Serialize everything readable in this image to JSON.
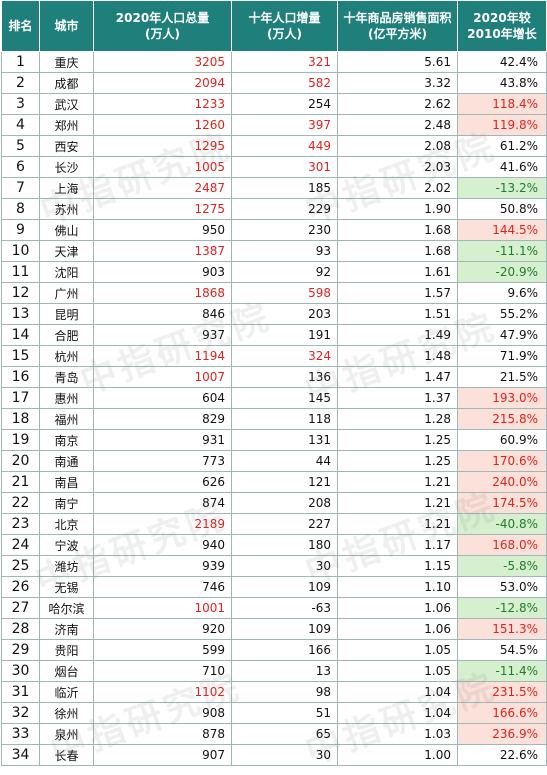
{
  "header": {
    "rank": "排名",
    "city": "城市",
    "pop_line1": "2020年人口总量",
    "pop_line2": "(万人)",
    "inc_line1": "十年人口增量",
    "inc_line2": "(万人)",
    "area_line1": "十年商品房销售面积",
    "area_line2": "(亿平方米)",
    "chg_line1": "2020年较",
    "chg_line2": "2010年增长"
  },
  "watermark": "中指研究院",
  "rows": [
    {
      "rank": "1",
      "city": "重庆",
      "pop": "3205",
      "pop_hl": true,
      "inc": "321",
      "inc_hl": true,
      "area": "5.61",
      "chg": "42.4%",
      "chg_hl": ""
    },
    {
      "rank": "2",
      "city": "成都",
      "pop": "2094",
      "pop_hl": true,
      "inc": "582",
      "inc_hl": true,
      "area": "3.32",
      "chg": "43.8%",
      "chg_hl": ""
    },
    {
      "rank": "3",
      "city": "武汉",
      "pop": "1233",
      "pop_hl": true,
      "inc": "254",
      "inc_hl": false,
      "area": "2.62",
      "chg": "118.4%",
      "chg_hl": "pos"
    },
    {
      "rank": "4",
      "city": "郑州",
      "pop": "1260",
      "pop_hl": true,
      "inc": "397",
      "inc_hl": true,
      "area": "2.48",
      "chg": "119.8%",
      "chg_hl": "pos"
    },
    {
      "rank": "5",
      "city": "西安",
      "pop": "1295",
      "pop_hl": true,
      "inc": "449",
      "inc_hl": true,
      "area": "2.08",
      "chg": "61.2%",
      "chg_hl": ""
    },
    {
      "rank": "6",
      "city": "长沙",
      "pop": "1005",
      "pop_hl": true,
      "inc": "301",
      "inc_hl": true,
      "area": "2.03",
      "chg": "41.6%",
      "chg_hl": ""
    },
    {
      "rank": "7",
      "city": "上海",
      "pop": "2487",
      "pop_hl": true,
      "inc": "185",
      "inc_hl": false,
      "area": "2.02",
      "chg": "-13.2%",
      "chg_hl": "neg"
    },
    {
      "rank": "8",
      "city": "苏州",
      "pop": "1275",
      "pop_hl": true,
      "inc": "229",
      "inc_hl": false,
      "area": "1.90",
      "chg": "50.8%",
      "chg_hl": ""
    },
    {
      "rank": "9",
      "city": "佛山",
      "pop": "950",
      "pop_hl": false,
      "inc": "230",
      "inc_hl": false,
      "area": "1.68",
      "chg": "144.5%",
      "chg_hl": "pos"
    },
    {
      "rank": "10",
      "city": "天津",
      "pop": "1387",
      "pop_hl": true,
      "inc": "93",
      "inc_hl": false,
      "area": "1.68",
      "chg": "-11.1%",
      "chg_hl": "neg"
    },
    {
      "rank": "11",
      "city": "沈阳",
      "pop": "903",
      "pop_hl": false,
      "inc": "92",
      "inc_hl": false,
      "area": "1.61",
      "chg": "-20.9%",
      "chg_hl": "neg"
    },
    {
      "rank": "12",
      "city": "广州",
      "pop": "1868",
      "pop_hl": true,
      "inc": "598",
      "inc_hl": true,
      "area": "1.57",
      "chg": "9.6%",
      "chg_hl": ""
    },
    {
      "rank": "13",
      "city": "昆明",
      "pop": "846",
      "pop_hl": false,
      "inc": "203",
      "inc_hl": false,
      "area": "1.51",
      "chg": "55.2%",
      "chg_hl": ""
    },
    {
      "rank": "14",
      "city": "合肥",
      "pop": "937",
      "pop_hl": false,
      "inc": "191",
      "inc_hl": false,
      "area": "1.49",
      "chg": "47.9%",
      "chg_hl": ""
    },
    {
      "rank": "15",
      "city": "杭州",
      "pop": "1194",
      "pop_hl": true,
      "inc": "324",
      "inc_hl": true,
      "area": "1.48",
      "chg": "71.9%",
      "chg_hl": ""
    },
    {
      "rank": "16",
      "city": "青岛",
      "pop": "1007",
      "pop_hl": true,
      "inc": "136",
      "inc_hl": false,
      "area": "1.47",
      "chg": "21.5%",
      "chg_hl": ""
    },
    {
      "rank": "17",
      "city": "惠州",
      "pop": "604",
      "pop_hl": false,
      "inc": "145",
      "inc_hl": false,
      "area": "1.37",
      "chg": "193.0%",
      "chg_hl": "pos"
    },
    {
      "rank": "18",
      "city": "福州",
      "pop": "829",
      "pop_hl": false,
      "inc": "118",
      "inc_hl": false,
      "area": "1.28",
      "chg": "215.8%",
      "chg_hl": "pos"
    },
    {
      "rank": "19",
      "city": "南京",
      "pop": "931",
      "pop_hl": false,
      "inc": "131",
      "inc_hl": false,
      "area": "1.25",
      "chg": "60.9%",
      "chg_hl": ""
    },
    {
      "rank": "20",
      "city": "南通",
      "pop": "773",
      "pop_hl": false,
      "inc": "44",
      "inc_hl": false,
      "area": "1.25",
      "chg": "170.6%",
      "chg_hl": "pos"
    },
    {
      "rank": "21",
      "city": "南昌",
      "pop": "626",
      "pop_hl": false,
      "inc": "121",
      "inc_hl": false,
      "area": "1.21",
      "chg": "240.0%",
      "chg_hl": "pos"
    },
    {
      "rank": "22",
      "city": "南宁",
      "pop": "874",
      "pop_hl": false,
      "inc": "208",
      "inc_hl": false,
      "area": "1.21",
      "chg": "174.5%",
      "chg_hl": "pos"
    },
    {
      "rank": "23",
      "city": "北京",
      "pop": "2189",
      "pop_hl": true,
      "inc": "227",
      "inc_hl": false,
      "area": "1.21",
      "chg": "-40.8%",
      "chg_hl": "neg"
    },
    {
      "rank": "24",
      "city": "宁波",
      "pop": "940",
      "pop_hl": false,
      "inc": "180",
      "inc_hl": false,
      "area": "1.17",
      "chg": "168.0%",
      "chg_hl": "pos"
    },
    {
      "rank": "25",
      "city": "潍坊",
      "pop": "939",
      "pop_hl": false,
      "inc": "30",
      "inc_hl": false,
      "area": "1.15",
      "chg": "-5.8%",
      "chg_hl": "neg"
    },
    {
      "rank": "26",
      "city": "无锡",
      "pop": "746",
      "pop_hl": false,
      "inc": "109",
      "inc_hl": false,
      "area": "1.10",
      "chg": "53.0%",
      "chg_hl": ""
    },
    {
      "rank": "27",
      "city": "哈尔滨",
      "pop": "1001",
      "pop_hl": true,
      "inc": "-63",
      "inc_hl": false,
      "area": "1.06",
      "chg": "-12.8%",
      "chg_hl": "neg"
    },
    {
      "rank": "28",
      "city": "济南",
      "pop": "920",
      "pop_hl": false,
      "inc": "109",
      "inc_hl": false,
      "area": "1.06",
      "chg": "151.3%",
      "chg_hl": "pos"
    },
    {
      "rank": "29",
      "city": "贵阳",
      "pop": "599",
      "pop_hl": false,
      "inc": "166",
      "inc_hl": false,
      "area": "1.05",
      "chg": "54.5%",
      "chg_hl": ""
    },
    {
      "rank": "30",
      "city": "烟台",
      "pop": "710",
      "pop_hl": false,
      "inc": "13",
      "inc_hl": false,
      "area": "1.05",
      "chg": "-11.4%",
      "chg_hl": "neg"
    },
    {
      "rank": "31",
      "city": "临沂",
      "pop": "1102",
      "pop_hl": true,
      "inc": "98",
      "inc_hl": false,
      "area": "1.04",
      "chg": "231.5%",
      "chg_hl": "pos"
    },
    {
      "rank": "32",
      "city": "徐州",
      "pop": "908",
      "pop_hl": false,
      "inc": "51",
      "inc_hl": false,
      "area": "1.04",
      "chg": "166.6%",
      "chg_hl": "pos"
    },
    {
      "rank": "33",
      "city": "泉州",
      "pop": "878",
      "pop_hl": false,
      "inc": "65",
      "inc_hl": false,
      "area": "1.03",
      "chg": "236.9%",
      "chg_hl": "pos"
    },
    {
      "rank": "34",
      "city": "长春",
      "pop": "907",
      "pop_hl": false,
      "inc": "30",
      "inc_hl": false,
      "area": "1.00",
      "chg": "22.6%",
      "chg_hl": ""
    }
  ]
}
